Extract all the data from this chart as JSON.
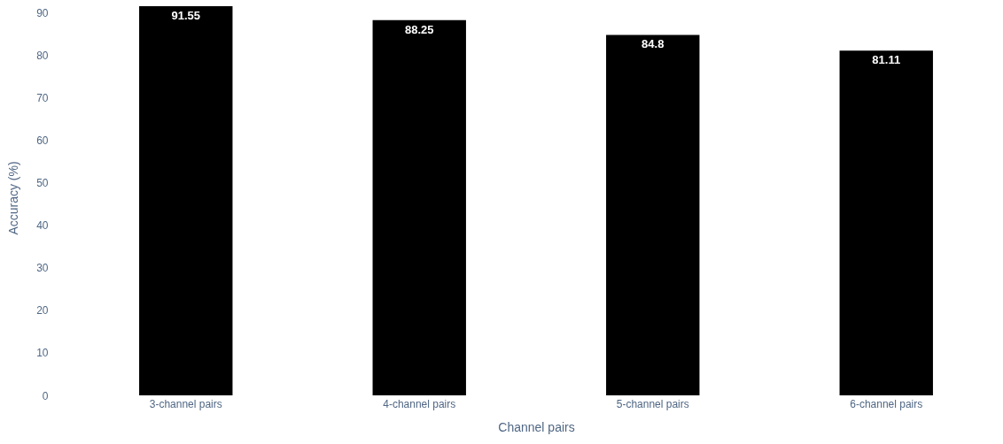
{
  "chart_data": {
    "type": "bar",
    "xlabel": "Channel pairs",
    "ylabel": "Accuracy (%)",
    "categories": [
      "3-channel pairs",
      "4-channel pairs",
      "5-channel pairs",
      "6-channel pairs"
    ],
    "values": [
      91.55,
      88.25,
      84.8,
      81.11
    ],
    "color": "#000000",
    "ylim": [
      0,
      93
    ],
    "yticks": [
      0,
      10,
      20,
      30,
      40,
      50,
      60,
      70,
      80,
      90
    ],
    "grid": false,
    "data_labels": true
  }
}
